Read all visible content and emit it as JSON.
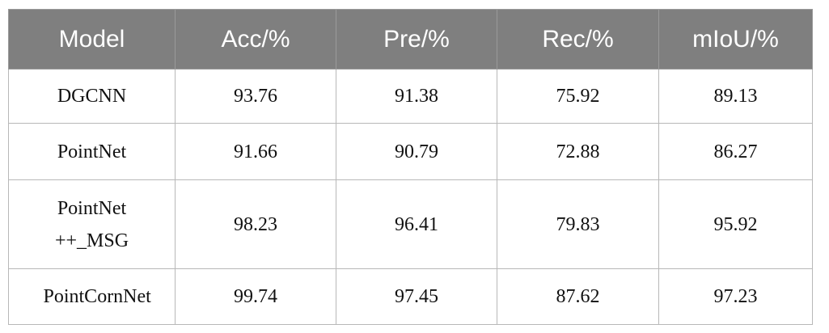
{
  "table": {
    "header": [
      "Model",
      "Acc/%",
      "Pre/%",
      "Rec/%",
      "mIoU/%"
    ],
    "rows": [
      [
        "DGCNN",
        93.76,
        91.38,
        75.92,
        89.13
      ],
      [
        "PointNet",
        91.66,
        90.79,
        72.88,
        86.27
      ],
      [
        "PointNet ++_MSG",
        98.23,
        96.41,
        79.83,
        95.92
      ],
      [
        "PointCornNet",
        99.74,
        97.45,
        87.62,
        97.23
      ]
    ]
  }
}
